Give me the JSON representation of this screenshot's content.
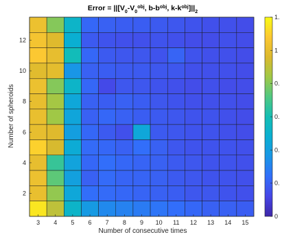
{
  "chart_data": {
    "type": "heatmap",
    "title_parts": [
      {
        "t": "Error = ||[V"
      },
      {
        "t": "0",
        "pos": "sub"
      },
      {
        "t": "-V"
      },
      {
        "t": "0",
        "pos": "sub"
      },
      {
        "t": "obj",
        "pos": "sup"
      },
      {
        "t": ", b-b"
      },
      {
        "t": "obj",
        "pos": "sup"
      },
      {
        "t": ", k-k"
      },
      {
        "t": "obj",
        "pos": "sup"
      },
      {
        "t": "]||"
      },
      {
        "t": "2",
        "pos": "sub"
      }
    ],
    "xlabel": "Number of consecutive times",
    "ylabel": "Number of spheroids",
    "x_values": [
      3,
      4,
      5,
      6,
      7,
      8,
      9,
      10,
      11,
      12,
      13,
      14,
      15
    ],
    "y_values": [
      1,
      2,
      3,
      4,
      5,
      6,
      7,
      8,
      9,
      10,
      11,
      12,
      13
    ],
    "x_ticks": [
      "3",
      "4",
      "5",
      "6",
      "7",
      "8",
      "9",
      "10",
      "11",
      "12",
      "13",
      "14",
      "15"
    ],
    "y_ticks": [
      "2",
      "4",
      "6",
      "8",
      "10",
      "12"
    ],
    "xlim": [
      2.5,
      15.5
    ],
    "ylim": [
      0.5,
      13.5
    ],
    "colormap": "parula",
    "clim": [
      0,
      1.2
    ],
    "colorbar_ticks": [
      {
        "value": 1.2,
        "label": "1."
      },
      {
        "value": 1.0,
        "label": "1"
      },
      {
        "value": 0.8,
        "label": "0."
      },
      {
        "value": 0.6,
        "label": "0."
      },
      {
        "value": 0.4,
        "label": "0."
      },
      {
        "value": 0.2,
        "label": "0."
      },
      {
        "value": 0,
        "label": "0"
      }
    ],
    "z_rows_top_to_bottom": [
      [
        1.02,
        0.8,
        0.52,
        0.22,
        0.2,
        0.19,
        0.19,
        0.18,
        0.17,
        0.16,
        0.15,
        0.15,
        0.14
      ],
      [
        1.05,
        0.97,
        0.48,
        0.18,
        0.16,
        0.15,
        0.15,
        0.16,
        0.15,
        0.14,
        0.14,
        0.15,
        0.14
      ],
      [
        1.08,
        1.0,
        0.58,
        0.22,
        0.18,
        0.17,
        0.17,
        0.16,
        0.21,
        0.16,
        0.15,
        0.15,
        0.14
      ],
      [
        0.98,
        0.99,
        0.36,
        0.2,
        0.19,
        0.18,
        0.18,
        0.17,
        0.17,
        0.15,
        0.15,
        0.15,
        0.14
      ],
      [
        1.02,
        0.8,
        0.52,
        0.22,
        0.13,
        0.17,
        0.17,
        0.16,
        0.15,
        0.14,
        0.15,
        0.14,
        0.14
      ],
      [
        1.0,
        0.85,
        0.44,
        0.2,
        0.19,
        0.2,
        0.19,
        0.17,
        0.16,
        0.15,
        0.15,
        0.15,
        0.14
      ],
      [
        1.01,
        0.84,
        0.43,
        0.2,
        0.22,
        0.2,
        0.19,
        0.18,
        0.17,
        0.16,
        0.16,
        0.15,
        0.14
      ],
      [
        1.0,
        0.97,
        0.4,
        0.22,
        0.18,
        0.15,
        0.44,
        0.18,
        0.17,
        0.16,
        0.16,
        0.15,
        0.14
      ],
      [
        1.1,
        0.95,
        0.46,
        0.23,
        0.22,
        0.2,
        0.24,
        0.2,
        0.17,
        0.16,
        0.16,
        0.16,
        0.15
      ],
      [
        1.0,
        0.67,
        0.42,
        0.22,
        0.24,
        0.22,
        0.21,
        0.2,
        0.18,
        0.17,
        0.16,
        0.16,
        0.15
      ],
      [
        1.02,
        0.74,
        0.41,
        0.2,
        0.23,
        0.21,
        0.21,
        0.2,
        0.18,
        0.17,
        0.16,
        0.16,
        0.15
      ],
      [
        1.01,
        0.82,
        0.44,
        0.24,
        0.23,
        0.22,
        0.21,
        0.2,
        0.19,
        0.17,
        0.17,
        0.16,
        0.15
      ],
      [
        1.15,
        0.9,
        0.52,
        0.38,
        0.32,
        0.3,
        0.28,
        0.26,
        0.24,
        0.22,
        0.2,
        0.2,
        0.19
      ]
    ]
  }
}
